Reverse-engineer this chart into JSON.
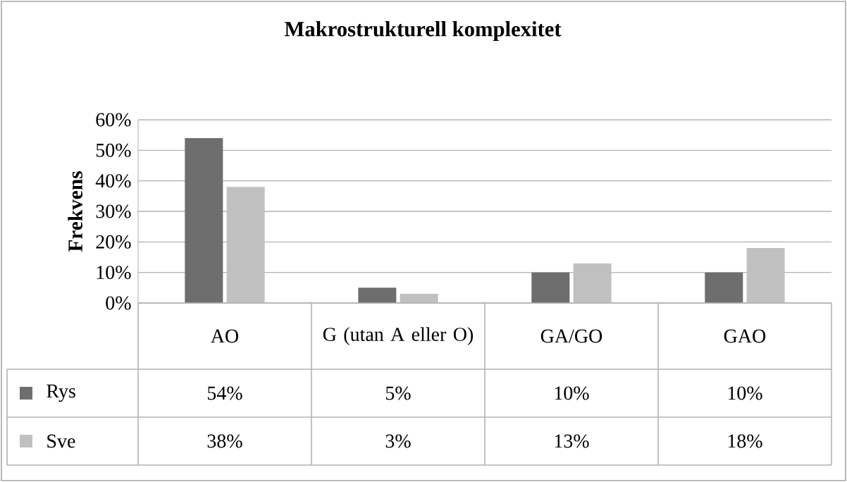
{
  "chart_data": {
    "type": "bar",
    "title": "Makrostrukturell komplexitet",
    "ylabel": "Frekvens",
    "categories": [
      "AO",
      "G (utan A eller O)",
      "GA/GO",
      "GAO"
    ],
    "series": [
      {
        "name": "Rys",
        "color": "#6e6e6e",
        "values": [
          54,
          5,
          10,
          10
        ],
        "value_labels": [
          "54%",
          "5%",
          "10%",
          "10%"
        ]
      },
      {
        "name": "Sve",
        "color": "#c0c0c0",
        "values": [
          38,
          3,
          13,
          18
        ],
        "value_labels": [
          "38%",
          "3%",
          "13%",
          "18%"
        ]
      }
    ],
    "ylim": [
      0,
      60
    ],
    "yticks": [
      {
        "value": 0,
        "label": "0%"
      },
      {
        "value": 10,
        "label": "10%"
      },
      {
        "value": 20,
        "label": "20%"
      },
      {
        "value": 30,
        "label": "30%"
      },
      {
        "value": 40,
        "label": "40%"
      },
      {
        "value": 50,
        "label": "50%"
      },
      {
        "value": 60,
        "label": "60%"
      }
    ],
    "grid": "y",
    "legend": "bottom left"
  }
}
